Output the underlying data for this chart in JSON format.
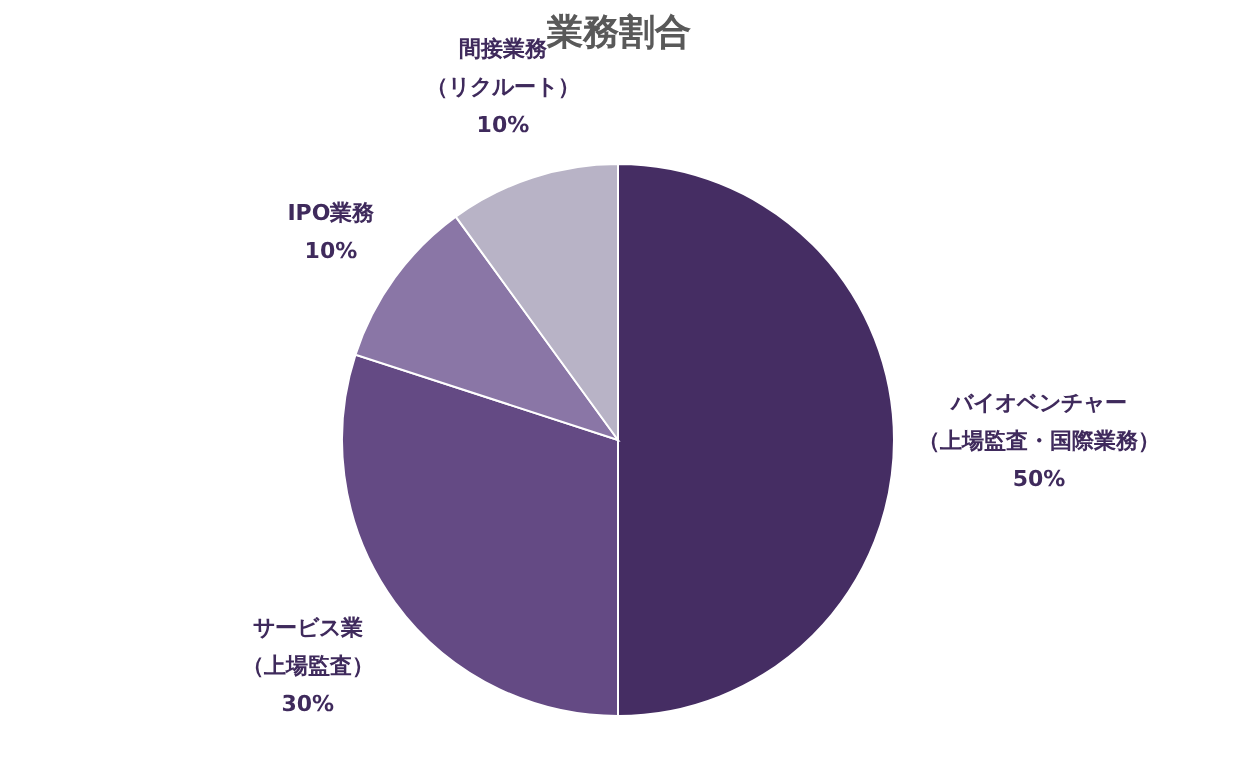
{
  "chart_data": {
    "type": "pie",
    "title": "業務割合",
    "categories": [
      "バイオベンチャー（上場監査・国際業務）",
      "サービス業（上場監査）",
      "IPO業務",
      "間接業務（リクルート）"
    ],
    "values": [
      50,
      30,
      10,
      10
    ],
    "value_labels": [
      "50%",
      "30%",
      "10%",
      "10%"
    ],
    "colors": [
      "#452d63",
      "#644a84",
      "#8a76a6",
      "#b8b3c6"
    ]
  }
}
